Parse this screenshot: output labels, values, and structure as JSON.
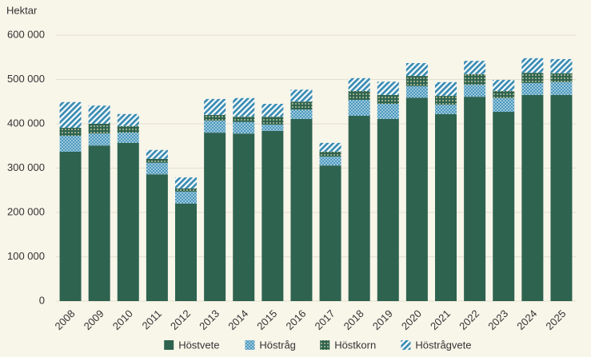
{
  "chart_data": {
    "type": "stacked_bar",
    "y_label": "Hektar",
    "categories": [
      "2008",
      "2009",
      "2010",
      "2011",
      "2012",
      "2013",
      "2014",
      "2015",
      "2016",
      "2017",
      "2018",
      "2019",
      "2020",
      "2021",
      "2022",
      "2023",
      "2024",
      "2025"
    ],
    "series": [
      {
        "name": "Höstvete",
        "color": "#2e6350",
        "pattern": "solid",
        "values": [
          337000,
          351000,
          357000,
          286000,
          220000,
          380000,
          378000,
          384000,
          411000,
          306000,
          418000,
          411000,
          459000,
          422000,
          461000,
          427000,
          465000,
          465000
        ]
      },
      {
        "name": "Höstråg",
        "color": "#3b8db3",
        "pattern": "hatch",
        "values": [
          36000,
          27000,
          23000,
          26000,
          27000,
          27000,
          26000,
          14000,
          21000,
          20000,
          36000,
          34000,
          26000,
          21000,
          27000,
          31000,
          27000,
          29000
        ]
      },
      {
        "name": "Höstkorn",
        "color": "#2e6350",
        "pattern": "dots",
        "values": [
          18000,
          22000,
          15000,
          9000,
          7000,
          13000,
          12000,
          18000,
          18000,
          11000,
          20000,
          20000,
          23000,
          20000,
          24000,
          16000,
          23000,
          20000
        ]
      },
      {
        "name": "Höstrågvete",
        "color": "#3b8db3",
        "pattern": "stripes",
        "values": [
          58000,
          41000,
          27000,
          20000,
          25000,
          36000,
          42000,
          29000,
          27000,
          20000,
          29000,
          30000,
          29000,
          31000,
          30000,
          25000,
          33000,
          32000
        ]
      }
    ],
    "ylim": [
      0,
      600000
    ],
    "yticks": [
      0,
      {
        "value": 100000,
        "label": "100 000"
      },
      {
        "value": 200000,
        "label": "200 000"
      },
      {
        "value": 300000,
        "label": "300 000"
      },
      {
        "value": 400000,
        "label": "400 000"
      },
      {
        "value": 500000,
        "label": "500 000"
      },
      {
        "value": 600000,
        "label": "600 000"
      }
    ],
    "grid": true,
    "legend": "bottom"
  }
}
